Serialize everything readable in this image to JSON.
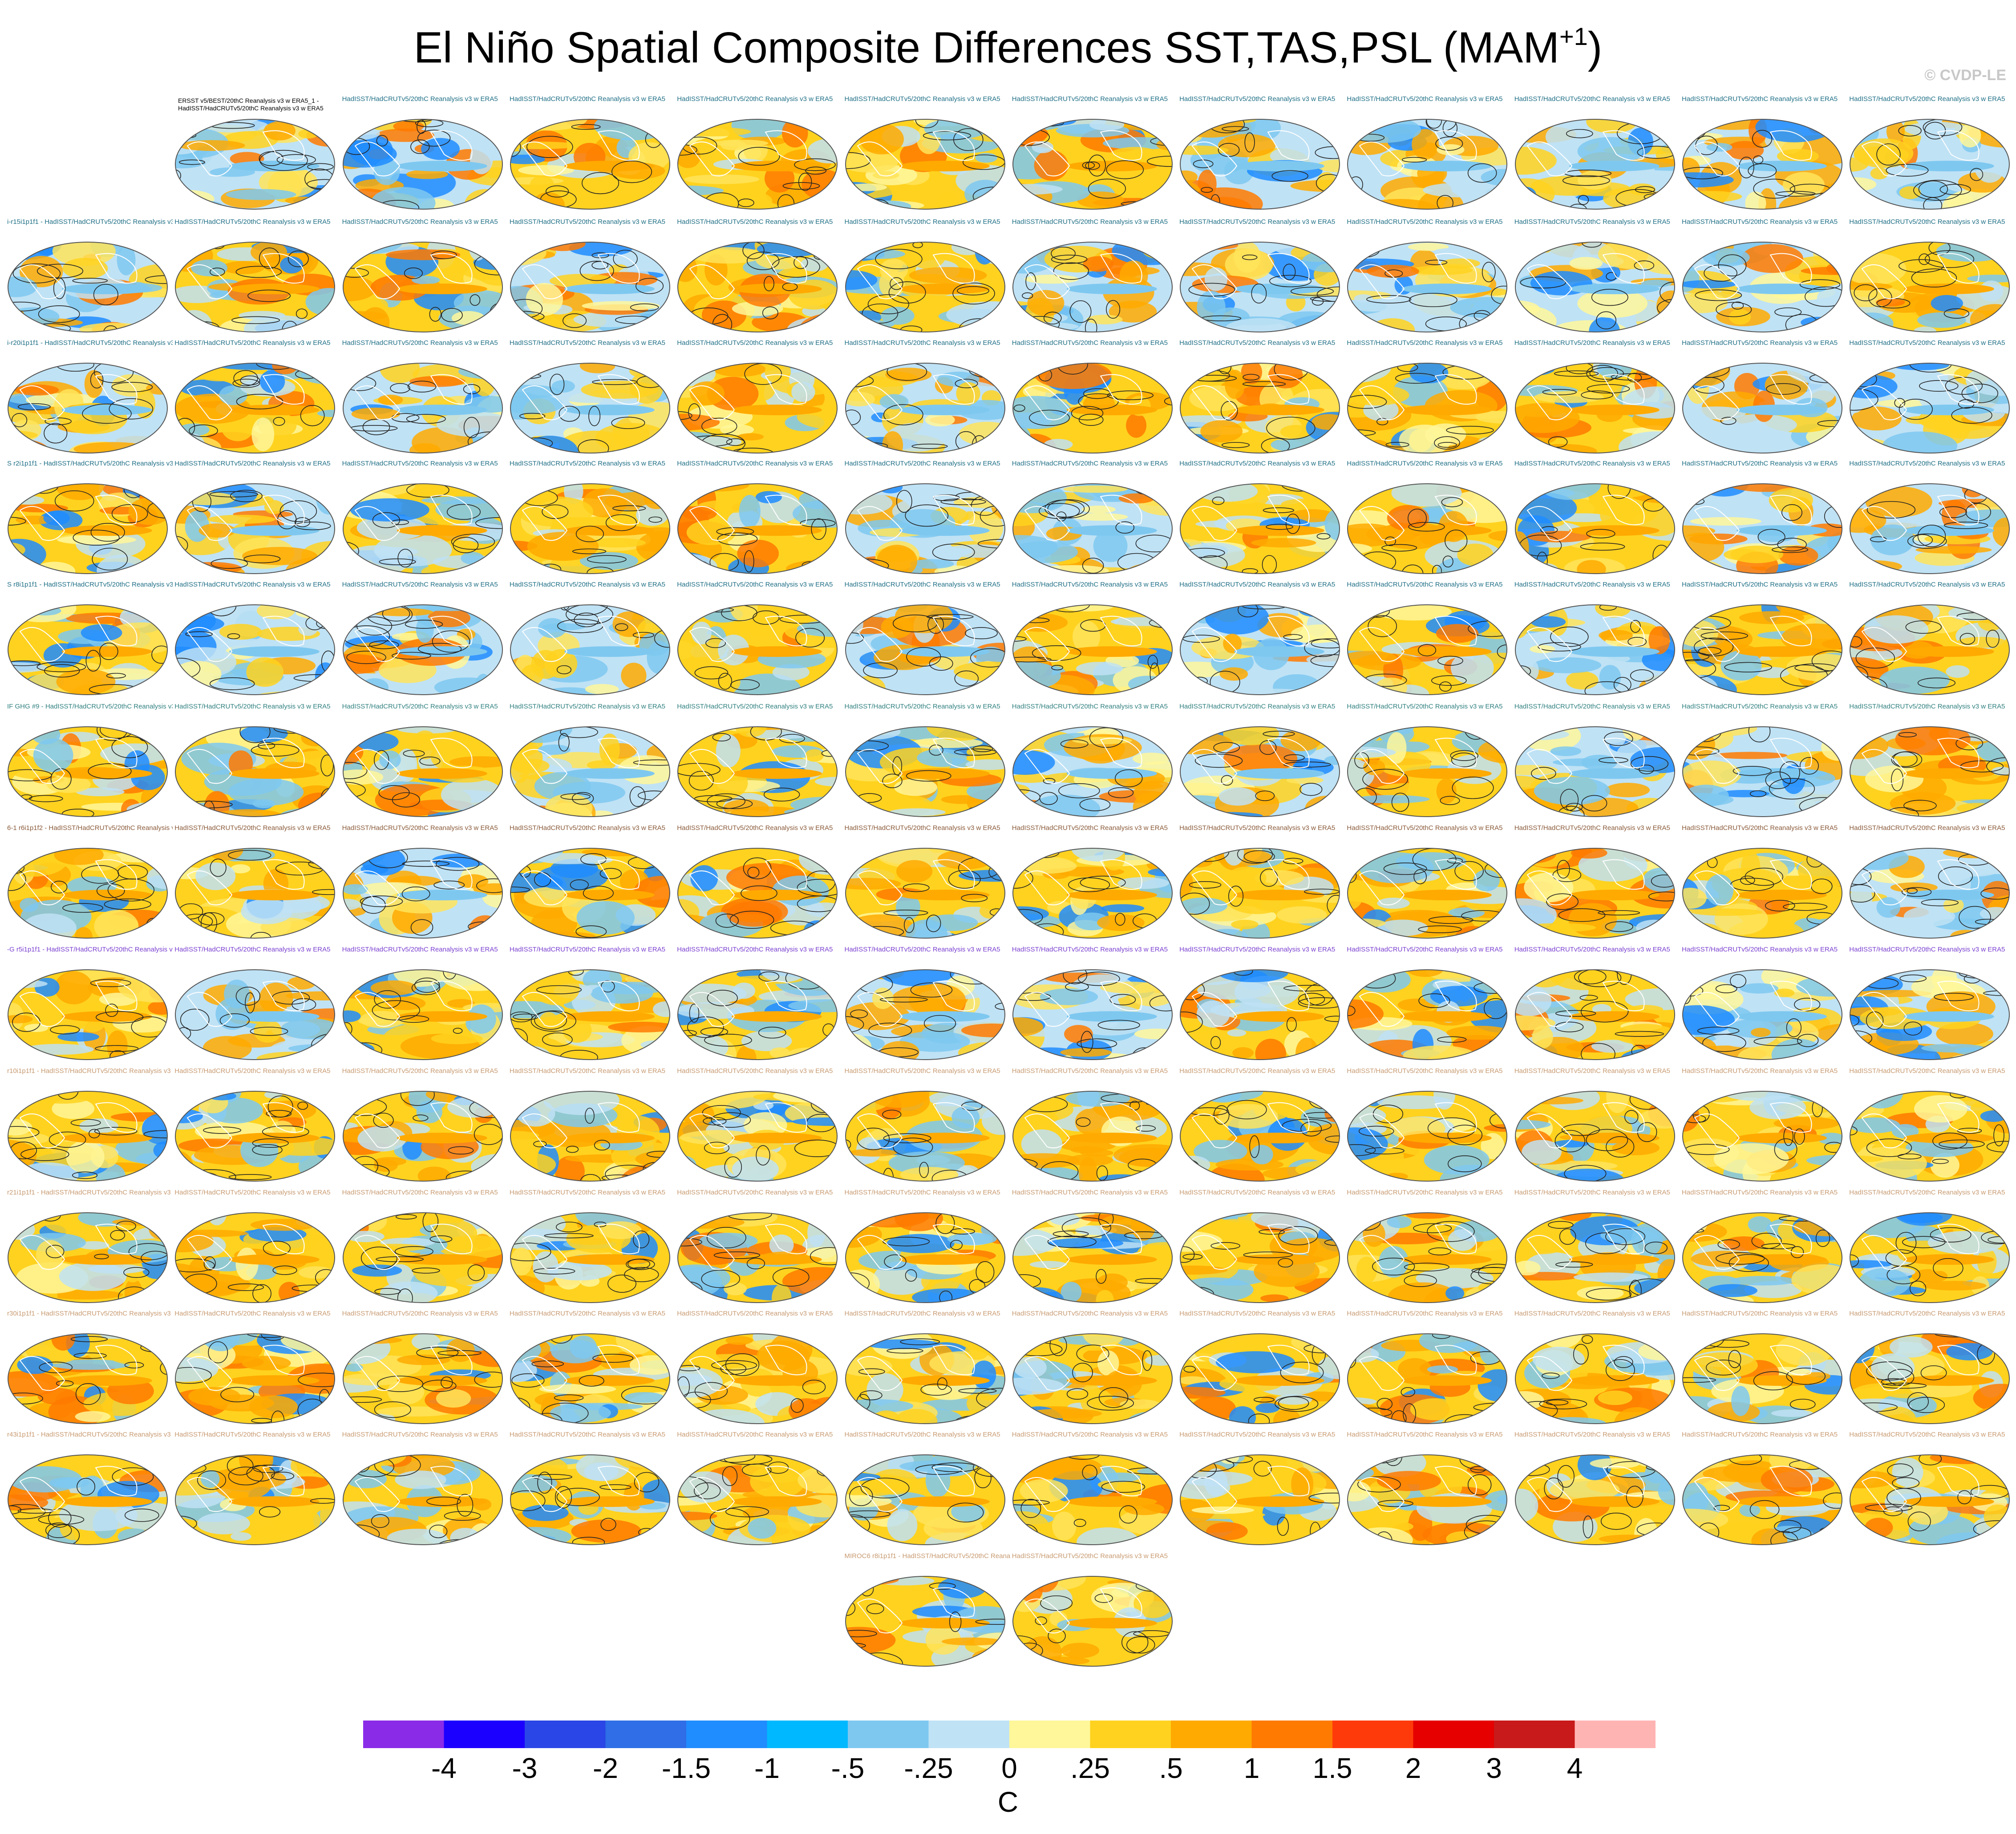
{
  "title": {
    "main": "El Niño Spatial Composite Differences SST,TAS,PSL (MAM",
    "superscript": "+1",
    "close": ")"
  },
  "copyright": "© CVDP-LE",
  "first_panel_label": {
    "line1": "ERSST v5/BEST/20thC Reanalysis v3 w ERA5_1 -",
    "line2": "HadISST/HadCRUTv5/20thC Reanalysis v3 w ERA5"
  },
  "panel_label_text": "HadISST/HadCRUTv5/20thC Reanalysis v3 w ERA5",
  "row_label_colors": [
    "#1f6f86",
    "#1f6f86",
    "#1f6f86",
    "#1f6f86",
    "#1f6f86",
    "#2f7f7f",
    "#8a5a3a",
    "#7a3fd0",
    "#c89a70",
    "#c89a70",
    "#c89a70",
    "#c89a70",
    "#c89a70"
  ],
  "row_prefixes": [
    "",
    "i-r15i1p1f1",
    "i-r20i1p1f1",
    "S r2i1p1f1",
    "S r8i1p1f1",
    "IF GHG #9",
    "6-1 r6i1p1f2",
    "-G r5i1p1f1",
    "r10i1p1f1",
    "r21i1p1f1",
    "r30i1p1f1",
    "r43i1p1f1",
    "MIROC6 r8i1p1f1"
  ],
  "colorbar": {
    "colors": [
      "#8a2be8",
      "#1c00ff",
      "#2a46e6",
      "#2f6ee6",
      "#1f8cff",
      "#00b8ff",
      "#7ec8f0",
      "#bfe2f5",
      "#fff79a",
      "#ffd21f",
      "#ffaa00",
      "#ff7a00",
      "#ff3a0a",
      "#e60000",
      "#c81a1a",
      "#ffb4b4"
    ],
    "labels": [
      "-4",
      "-3",
      "-2",
      "-1.5",
      "-1",
      "-.5",
      "-.25",
      "0",
      ".25",
      ".5",
      "1",
      "1.5",
      "2",
      "3",
      "4"
    ],
    "units": "C"
  }
}
